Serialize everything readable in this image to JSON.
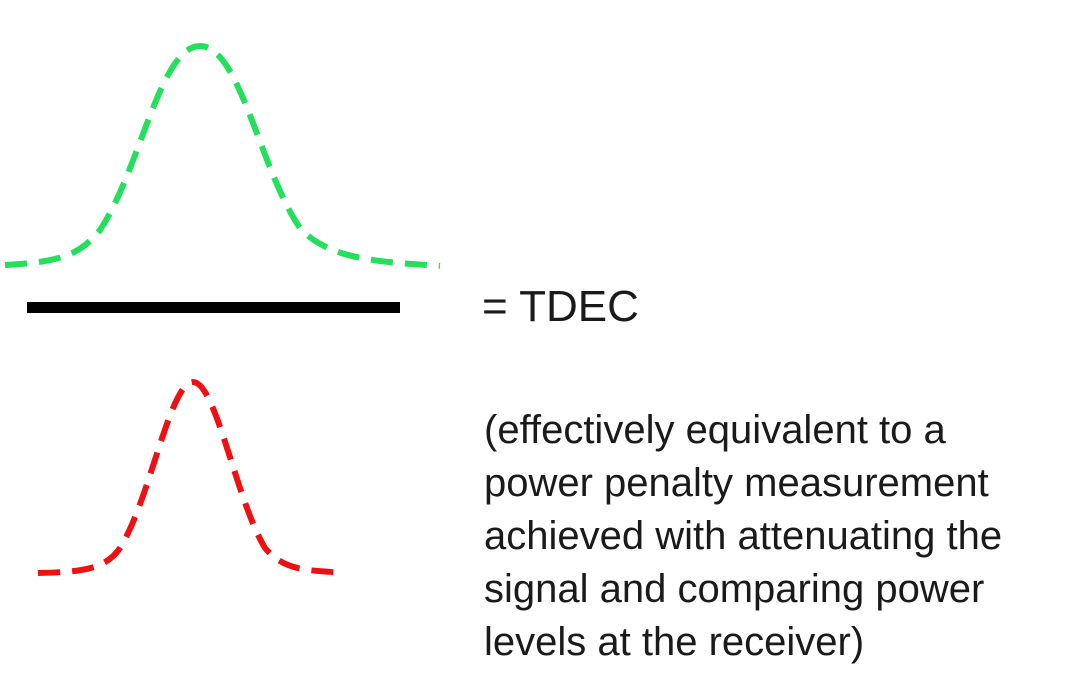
{
  "equation_label": "= TDEC",
  "note_lines": [
    "(effectively equivalent to a",
    "power penalty measurement",
    "achieved with attenuating the",
    "signal and comparing power",
    "levels at the receiver)"
  ],
  "colors": {
    "numerator_curve": "#22e05a",
    "denominator_curve": "#ee1111",
    "fraction_bar": "#000000"
  }
}
